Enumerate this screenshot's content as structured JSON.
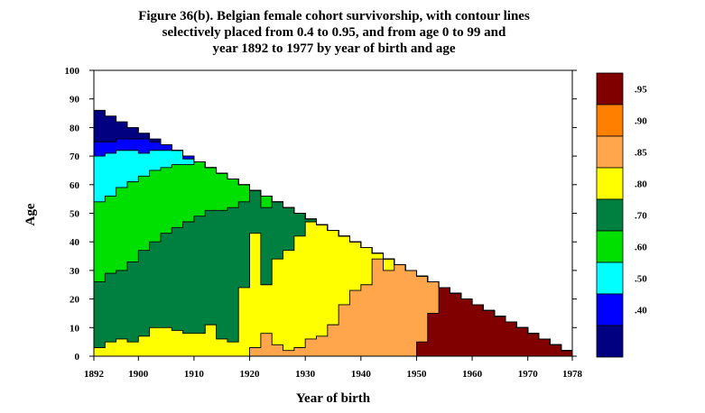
{
  "chart_data": {
    "type": "heatmap",
    "title_lines": [
      "Figure 36(b). Belgian female cohort survivorship, with contour lines",
      "selectively placed from 0.4 to 0.95, and from age 0 to 99 and",
      "year 1892 to 1977 by year of birth and age"
    ],
    "xlabel": "Year of birth",
    "ylabel": "Age",
    "xlim": [
      1892,
      1978
    ],
    "ylim": [
      0,
      100
    ],
    "x_ticks": [
      1892,
      1900,
      1910,
      1920,
      1930,
      1940,
      1950,
      1960,
      1970,
      1978
    ],
    "y_ticks": [
      0,
      10,
      20,
      30,
      40,
      50,
      60,
      70,
      80,
      90,
      100
    ],
    "legend": {
      "placement": "right",
      "levels": [
        {
          "label": ".95",
          "color": "#800000"
        },
        {
          "label": ".90",
          "color": "#ff8000"
        },
        {
          "label": ".85",
          "color": "#ffa64d"
        },
        {
          "label": ".80",
          "color": "#ffff00"
        },
        {
          "label": ".70",
          "color": "#008040"
        },
        {
          "label": ".60",
          "color": "#00e000"
        },
        {
          "label": ".50",
          "color": "#00ffff"
        },
        {
          "label": ".40",
          "color": "#0000ff"
        },
        {
          "label": "",
          "color": "#000080"
        }
      ]
    },
    "region_colors": {
      "lt40": "#000080",
      "p40": "#0000ff",
      "p50": "#00ffff",
      "p60": "#00e000",
      "p70": "#008040",
      "p80": "#ffff00",
      "p85": "#ffa64d",
      "p90": "#ff8000",
      "p95": "#800000"
    },
    "contours": {
      "x": [
        1892,
        1894,
        1896,
        1898,
        1900,
        1902,
        1904,
        1906,
        1908,
        1910,
        1912,
        1914,
        1916,
        1918,
        1920,
        1922,
        1924,
        1926,
        1928,
        1930,
        1932,
        1934,
        1936,
        1938,
        1940,
        1942,
        1944,
        1946,
        1948,
        1950,
        1952,
        1954,
        1956,
        1958,
        1960,
        1962,
        1964,
        1966,
        1968,
        1970,
        1972,
        1974,
        1976,
        1978
      ],
      "top_age": [
        86,
        84,
        82,
        80,
        78,
        76,
        74,
        72,
        70,
        68,
        66,
        64,
        62,
        60,
        58,
        56,
        54,
        52,
        50,
        48,
        46,
        44,
        42,
        40,
        38,
        36,
        34,
        32,
        30,
        28,
        26,
        24,
        22,
        20,
        18,
        16,
        14,
        12,
        10,
        8,
        6,
        4,
        2,
        0
      ],
      "c40": [
        75,
        75,
        76,
        76,
        76,
        75,
        74,
        72,
        70,
        68,
        66,
        64,
        62,
        60,
        58,
        56,
        54,
        52,
        50,
        48,
        46,
        44,
        42,
        40,
        38,
        36,
        34,
        32,
        30,
        28,
        26,
        24,
        22,
        20,
        18,
        16,
        14,
        12,
        10,
        8,
        6,
        4,
        2,
        0
      ],
      "c50": [
        70,
        71,
        72,
        72,
        71,
        72,
        72,
        72,
        69,
        68,
        66,
        64,
        62,
        60,
        58,
        56,
        54,
        52,
        50,
        48,
        46,
        44,
        42,
        40,
        38,
        36,
        34,
        32,
        30,
        28,
        26,
        24,
        22,
        20,
        18,
        16,
        14,
        12,
        10,
        8,
        6,
        4,
        2,
        0
      ],
      "c60": [
        54,
        56,
        59,
        61,
        63,
        65,
        66,
        67,
        67,
        68,
        66,
        64,
        62,
        60,
        58,
        56,
        54,
        52,
        50,
        48,
        46,
        44,
        42,
        40,
        38,
        36,
        34,
        32,
        30,
        28,
        26,
        24,
        22,
        20,
        18,
        16,
        14,
        12,
        10,
        8,
        6,
        4,
        2,
        0
      ],
      "c70": [
        26,
        29,
        30,
        33,
        37,
        40,
        43,
        45,
        47,
        49,
        51,
        51,
        52,
        54,
        58,
        52,
        54,
        52,
        50,
        48,
        46,
        44,
        42,
        40,
        38,
        36,
        34,
        32,
        30,
        28,
        26,
        24,
        22,
        20,
        18,
        16,
        14,
        12,
        10,
        8,
        6,
        4,
        2,
        0
      ],
      "c80": [
        3,
        5,
        6,
        5,
        7,
        10,
        10,
        9,
        8,
        8,
        11,
        6,
        5,
        24,
        43,
        25,
        34,
        37,
        42,
        47,
        46,
        44,
        42,
        40,
        38,
        36,
        34,
        32,
        30,
        28,
        26,
        24,
        22,
        20,
        18,
        16,
        14,
        12,
        10,
        8,
        6,
        4,
        2,
        0
      ],
      "c85": [
        0,
        0,
        0,
        0,
        0,
        0,
        0,
        0,
        0,
        0,
        0,
        0,
        0,
        0,
        3,
        8,
        4,
        2,
        3,
        6,
        7,
        11,
        18,
        23,
        25,
        34,
        30,
        32,
        30,
        28,
        26,
        24,
        22,
        20,
        18,
        16,
        14,
        12,
        10,
        8,
        6,
        4,
        2,
        0
      ],
      "c90": [
        0,
        0,
        0,
        0,
        0,
        0,
        0,
        0,
        0,
        0,
        0,
        0,
        0,
        0,
        0,
        0,
        0,
        0,
        0,
        0,
        0,
        0,
        0,
        0,
        0,
        0,
        0,
        0,
        0,
        5,
        15,
        24,
        22,
        20,
        18,
        16,
        14,
        12,
        10,
        8,
        6,
        4,
        2,
        0
      ]
    }
  }
}
